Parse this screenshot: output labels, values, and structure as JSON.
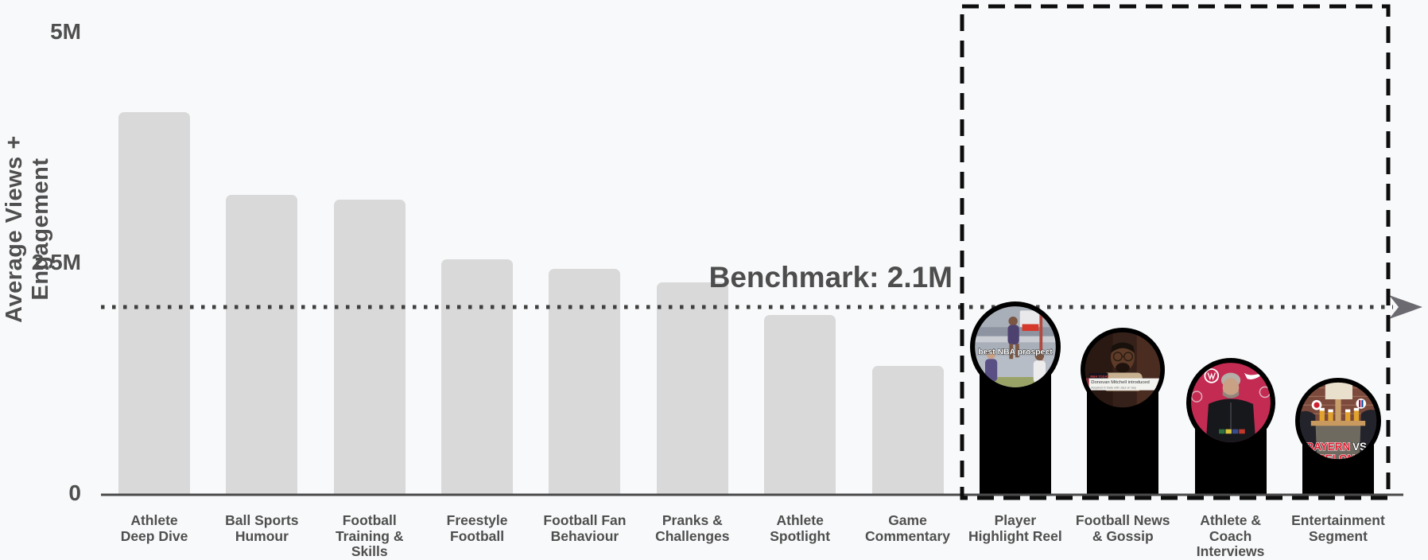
{
  "chart_data": {
    "type": "bar",
    "title": "",
    "xlabel": "",
    "ylabel": "Average Views + Engagement",
    "ylim_millions": [
      0,
      5
    ],
    "grid": false,
    "yticks": [
      {
        "label": "0",
        "value_millions": 0
      },
      {
        "label": "2.5M",
        "value_millions": 2.5
      },
      {
        "label": "5M",
        "value_millions": 5
      }
    ],
    "benchmark": {
      "label": "Benchmark: 2.1M",
      "value_millions": 2.1
    },
    "categories": [
      "Athlete Deep Dive",
      "Ball Sports Humour",
      "Football Training & Skills",
      "Freestyle Football",
      "Football Fan Behaviour",
      "Pranks & Challenges",
      "Athlete Spotlight",
      "Game Commentary",
      "Player Highlight Reel",
      "Football News & Gossip",
      "Athlete & Coach Interviews",
      "Entertainment Segment"
    ],
    "label_lines": [
      [
        "Athlete",
        "Deep Dive"
      ],
      [
        "Ball Sports",
        "Humour"
      ],
      [
        "Football",
        "Training &",
        "Skills"
      ],
      [
        "Freestyle",
        "Football"
      ],
      [
        "Football Fan",
        "Behaviour"
      ],
      [
        "Pranks &",
        "Challenges"
      ],
      [
        "Athlete",
        "Spotlight"
      ],
      [
        "Game",
        "Commentary"
      ],
      [
        "Player",
        "Highlight Reel"
      ],
      [
        "Football News",
        "& Gossip"
      ],
      [
        "Athlete &",
        "Coach",
        "Interviews"
      ],
      [
        "Entertainment",
        "Segment"
      ]
    ],
    "values_millions": [
      4.15,
      3.25,
      3.2,
      2.55,
      2.45,
      2.3,
      1.95,
      1.4,
      1.6,
      1.35,
      1.0,
      0.8
    ],
    "bar_styles": [
      "plain",
      "plain",
      "plain",
      "plain",
      "plain",
      "plain",
      "plain",
      "plain",
      "thumbnail",
      "thumbnail",
      "thumbnail",
      "thumbnail"
    ],
    "highlighted_categories": [
      "Player Highlight Reel",
      "Football News & Gossip",
      "Athlete & Coach Interviews",
      "Entertainment Segment"
    ]
  },
  "thumbnails": [
    {
      "category": "Player Highlight Reel",
      "style": "basketball-clip",
      "caption": "best NBA prospect"
    },
    {
      "category": "Football News & Gossip",
      "style": "news-interview-clip",
      "badge": "NBA TODAY",
      "headline": "Donovan Mitchell introduced",
      "subline": "Acquired in trade with Jazz on Sep"
    },
    {
      "category": "Athlete & Coach Interviews",
      "style": "press-conference-clip"
    },
    {
      "category": "Entertainment Segment",
      "style": "beer-garden-clip",
      "caption": "BAYERN",
      "caption2": "VS",
      "caption_cut": "RCELON"
    }
  ],
  "colors": {
    "background": "#f8f9fa",
    "bar_gray": "#d9d9d9",
    "bar_black": "#000000",
    "axis": "#4a4a4a",
    "text": "#4f4f4f",
    "benchmark_line": "#3f3f3f",
    "arrow": "#6a6a70",
    "dashed_box": "#0d0d0d"
  }
}
